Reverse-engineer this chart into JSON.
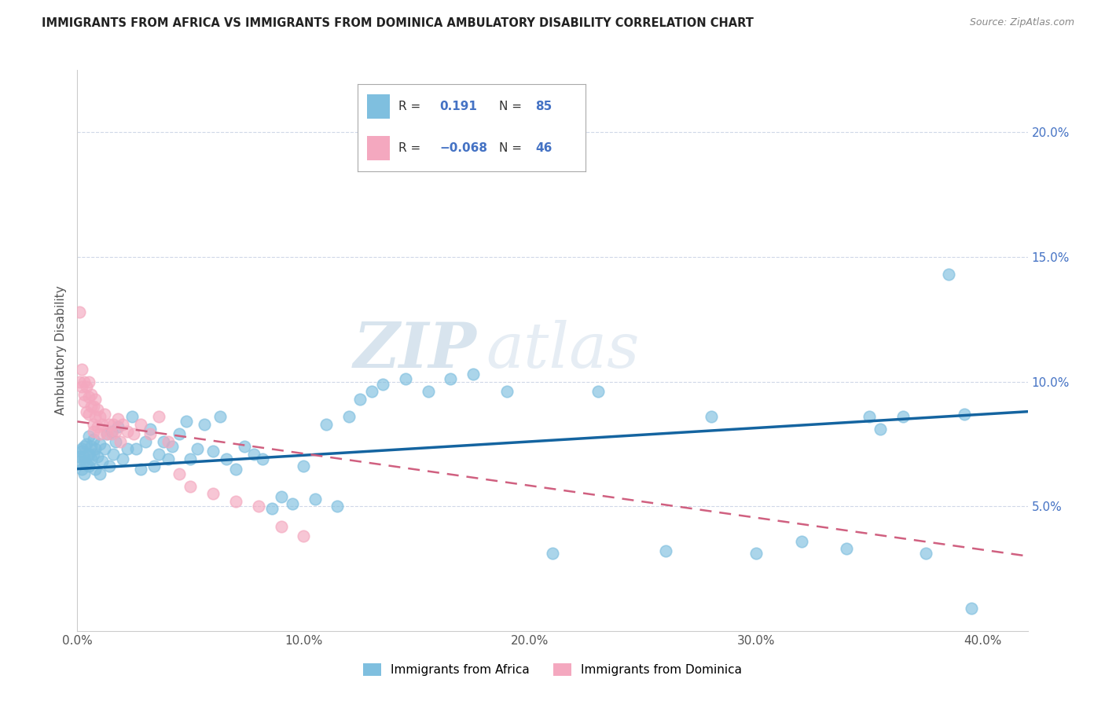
{
  "title": "IMMIGRANTS FROM AFRICA VS IMMIGRANTS FROM DOMINICA AMBULATORY DISABILITY CORRELATION CHART",
  "source": "Source: ZipAtlas.com",
  "ylabel": "Ambulatory Disability",
  "xlim": [
    0.0,
    0.42
  ],
  "ylim": [
    0.0,
    0.225
  ],
  "xticks": [
    0.0,
    0.1,
    0.2,
    0.3,
    0.4
  ],
  "yticks_right": [
    0.05,
    0.1,
    0.15,
    0.2
  ],
  "R_africa": 0.191,
  "N_africa": 85,
  "R_dominica": -0.068,
  "N_dominica": 46,
  "color_africa": "#7fbfdf",
  "color_dominica": "#f4a8bf",
  "trendline_africa": "#1464a0",
  "trendline_dominica": "#d06080",
  "watermark_zip": "ZIP",
  "watermark_atlas": "atlas",
  "africa_x": [
    0.001,
    0.001,
    0.002,
    0.002,
    0.002,
    0.003,
    0.003,
    0.003,
    0.003,
    0.004,
    0.004,
    0.005,
    0.005,
    0.005,
    0.006,
    0.006,
    0.007,
    0.007,
    0.008,
    0.008,
    0.009,
    0.01,
    0.01,
    0.011,
    0.012,
    0.013,
    0.014,
    0.015,
    0.016,
    0.017,
    0.018,
    0.02,
    0.022,
    0.024,
    0.026,
    0.028,
    0.03,
    0.032,
    0.034,
    0.036,
    0.038,
    0.04,
    0.042,
    0.045,
    0.048,
    0.05,
    0.053,
    0.056,
    0.06,
    0.063,
    0.066,
    0.07,
    0.074,
    0.078,
    0.082,
    0.086,
    0.09,
    0.095,
    0.1,
    0.105,
    0.11,
    0.115,
    0.12,
    0.125,
    0.13,
    0.135,
    0.145,
    0.155,
    0.165,
    0.175,
    0.19,
    0.21,
    0.23,
    0.26,
    0.28,
    0.3,
    0.32,
    0.34,
    0.35,
    0.355,
    0.365,
    0.375,
    0.385,
    0.392,
    0.395
  ],
  "africa_y": [
    0.07,
    0.068,
    0.072,
    0.065,
    0.073,
    0.068,
    0.074,
    0.063,
    0.07,
    0.067,
    0.075,
    0.071,
    0.066,
    0.078,
    0.069,
    0.074,
    0.071,
    0.077,
    0.065,
    0.073,
    0.07,
    0.075,
    0.063,
    0.068,
    0.073,
    0.079,
    0.066,
    0.08,
    0.071,
    0.076,
    0.082,
    0.069,
    0.073,
    0.086,
    0.073,
    0.065,
    0.076,
    0.081,
    0.066,
    0.071,
    0.076,
    0.069,
    0.074,
    0.079,
    0.084,
    0.069,
    0.073,
    0.083,
    0.072,
    0.086,
    0.069,
    0.065,
    0.074,
    0.071,
    0.069,
    0.049,
    0.054,
    0.051,
    0.066,
    0.053,
    0.083,
    0.05,
    0.086,
    0.093,
    0.096,
    0.099,
    0.101,
    0.096,
    0.101,
    0.103,
    0.096,
    0.031,
    0.096,
    0.032,
    0.086,
    0.031,
    0.036,
    0.033,
    0.086,
    0.081,
    0.086,
    0.031,
    0.143,
    0.087,
    0.009
  ],
  "dominica_x": [
    0.001,
    0.001,
    0.002,
    0.002,
    0.003,
    0.003,
    0.003,
    0.004,
    0.004,
    0.005,
    0.005,
    0.005,
    0.006,
    0.006,
    0.007,
    0.007,
    0.007,
    0.008,
    0.008,
    0.009,
    0.009,
    0.01,
    0.01,
    0.011,
    0.012,
    0.013,
    0.014,
    0.015,
    0.016,
    0.017,
    0.018,
    0.019,
    0.02,
    0.022,
    0.025,
    0.028,
    0.032,
    0.036,
    0.04,
    0.045,
    0.05,
    0.06,
    0.07,
    0.08,
    0.09,
    0.1
  ],
  "dominica_y": [
    0.128,
    0.1,
    0.098,
    0.105,
    0.095,
    0.1,
    0.092,
    0.098,
    0.088,
    0.094,
    0.1,
    0.087,
    0.09,
    0.095,
    0.083,
    0.09,
    0.08,
    0.086,
    0.093,
    0.082,
    0.089,
    0.079,
    0.086,
    0.083,
    0.087,
    0.079,
    0.083,
    0.079,
    0.083,
    0.08,
    0.085,
    0.076,
    0.083,
    0.08,
    0.079,
    0.083,
    0.079,
    0.086,
    0.076,
    0.063,
    0.058,
    0.055,
    0.052,
    0.05,
    0.042,
    0.038
  ],
  "africa_trendline_x": [
    0.0,
    0.42
  ],
  "africa_trendline_y_start": 0.065,
  "africa_trendline_y_end": 0.088,
  "dominica_trendline_x": [
    0.0,
    0.42
  ],
  "dominica_trendline_y_start": 0.084,
  "dominica_trendline_y_end": 0.03
}
